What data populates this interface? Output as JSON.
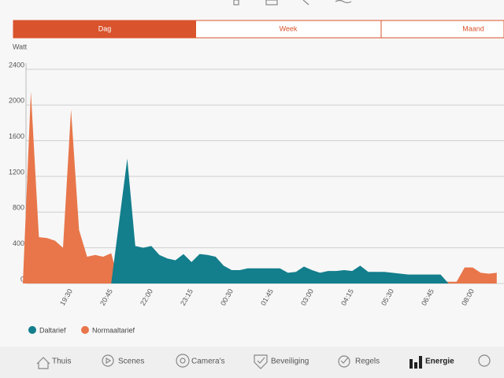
{
  "tabs": [
    "Dag",
    "Week",
    "Maand"
  ],
  "nav": [
    "Thuis",
    "Scenes",
    "Camera's",
    "Beveiliging",
    "Regels",
    "Energie"
  ],
  "chart_data": {
    "type": "area",
    "y_axis_label": "Watt",
    "categories": [
      null,
      null,
      null,
      null,
      null,
      null,
      "19:30",
      null,
      null,
      null,
      null,
      "20:45",
      null,
      null,
      null,
      null,
      "22:00",
      null,
      null,
      null,
      null,
      "23:15",
      null,
      null,
      null,
      null,
      "00:30",
      null,
      null,
      null,
      null,
      "01:45",
      null,
      null,
      null,
      null,
      "03:00",
      null,
      null,
      null,
      null,
      "04:15",
      null,
      null,
      null,
      null,
      "05:30",
      null,
      null,
      null,
      null,
      "06:45",
      null,
      null,
      null,
      null,
      "08:00",
      null,
      null,
      null
    ],
    "series": [
      {
        "name": "Normaaltarief",
        "color": "#e8764a",
        "values": [
          0,
          2150,
          520,
          510,
          480,
          400,
          1950,
          600,
          300,
          320,
          300,
          340,
          0,
          0,
          0,
          0,
          0,
          0,
          0,
          0,
          0,
          0,
          0,
          0,
          0,
          0,
          0,
          0,
          0,
          0,
          0,
          0,
          0,
          0,
          0,
          0,
          0,
          0,
          0,
          0,
          0,
          0,
          0,
          0,
          0,
          0,
          0,
          0,
          20,
          20,
          20,
          20,
          20,
          20,
          20,
          180,
          180,
          120,
          110,
          120
        ]
      },
      {
        "name": "Daltarief",
        "color": "#137e8c",
        "values": [
          0,
          0,
          0,
          0,
          0,
          0,
          0,
          0,
          0,
          0,
          0,
          0,
          700,
          1400,
          420,
          400,
          420,
          320,
          280,
          260,
          330,
          240,
          330,
          320,
          300,
          200,
          150,
          150,
          170,
          170,
          170,
          170,
          170,
          120,
          130,
          190,
          150,
          120,
          140,
          140,
          150,
          140,
          200,
          130,
          130,
          130,
          120,
          110,
          100,
          100,
          100,
          100,
          100,
          0,
          0,
          0,
          0,
          0,
          0,
          0
        ]
      }
    ],
    "ylim": [
      0,
      2400
    ],
    "yticks": [
      0,
      400,
      800,
      1200,
      1600,
      2000,
      2400
    ],
    "grid": true
  }
}
